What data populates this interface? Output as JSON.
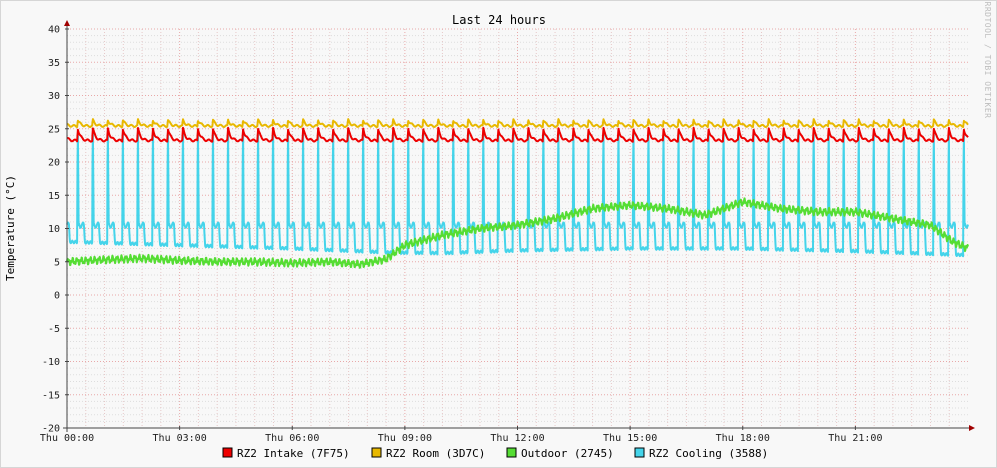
{
  "chart_data": {
    "type": "line",
    "title": "Last 24 hours",
    "ylabel": "Temperature (°C)",
    "watermark": "RRDTOOL / TOBI OETIKER",
    "ylim": [
      -20,
      40
    ],
    "xlim": [
      0,
      24
    ],
    "y_ticks": [
      -20,
      -15,
      -10,
      -5,
      0,
      5,
      10,
      15,
      20,
      25,
      30,
      35,
      40
    ],
    "x_ticks": [
      {
        "h": 0,
        "label": "Thu 00:00"
      },
      {
        "h": 3,
        "label": "Thu 03:00"
      },
      {
        "h": 6,
        "label": "Thu 06:00"
      },
      {
        "h": 9,
        "label": "Thu 09:00"
      },
      {
        "h": 12,
        "label": "Thu 12:00"
      },
      {
        "h": 15,
        "label": "Thu 15:00"
      },
      {
        "h": 18,
        "label": "Thu 18:00"
      },
      {
        "h": 21,
        "label": "Thu 21:00"
      }
    ],
    "grid": true,
    "legend_position": "bottom",
    "series": [
      {
        "name": "RZ2 Intake (7F75)",
        "color": "#ee0000",
        "pattern": "sawtooth",
        "period_h": 0.4,
        "base": 23.2,
        "peak": 25.0
      },
      {
        "name": "RZ2 Room (3D7C)",
        "color": "#e8b800",
        "pattern": "sawtooth",
        "period_h": 0.4,
        "base": 25.4,
        "peak": 26.3
      },
      {
        "name": "Outdoor (2745)",
        "color": "#55dd33",
        "pattern": "points",
        "x": [
          0,
          1,
          2,
          3,
          4,
          5,
          6,
          7,
          7.8,
          8.5,
          9,
          10,
          11,
          12,
          13,
          14,
          15,
          16,
          17,
          18,
          19,
          20,
          21,
          22,
          23,
          23.6,
          24
        ],
        "y": [
          5.0,
          5.3,
          5.5,
          5.2,
          5.0,
          5.0,
          4.8,
          5.0,
          4.6,
          5.4,
          7.5,
          9.0,
          10.0,
          10.5,
          11.5,
          13.0,
          13.5,
          13.0,
          12.0,
          14.0,
          13.0,
          12.5,
          12.5,
          11.5,
          10.5,
          8.0,
          7.0
        ]
      },
      {
        "name": "RZ2 Cooling (3588)",
        "color": "#44d4ea",
        "pattern": "cycles",
        "period_h": 0.4,
        "peak": 27.0,
        "plateau_x": [
          0,
          3,
          6,
          8.6,
          10,
          12,
          15,
          18,
          21,
          24
        ],
        "plateau_y": [
          8.0,
          7.5,
          7.0,
          6.4,
          6.3,
          6.7,
          7.0,
          7.0,
          6.6,
          6.0
        ]
      }
    ]
  }
}
